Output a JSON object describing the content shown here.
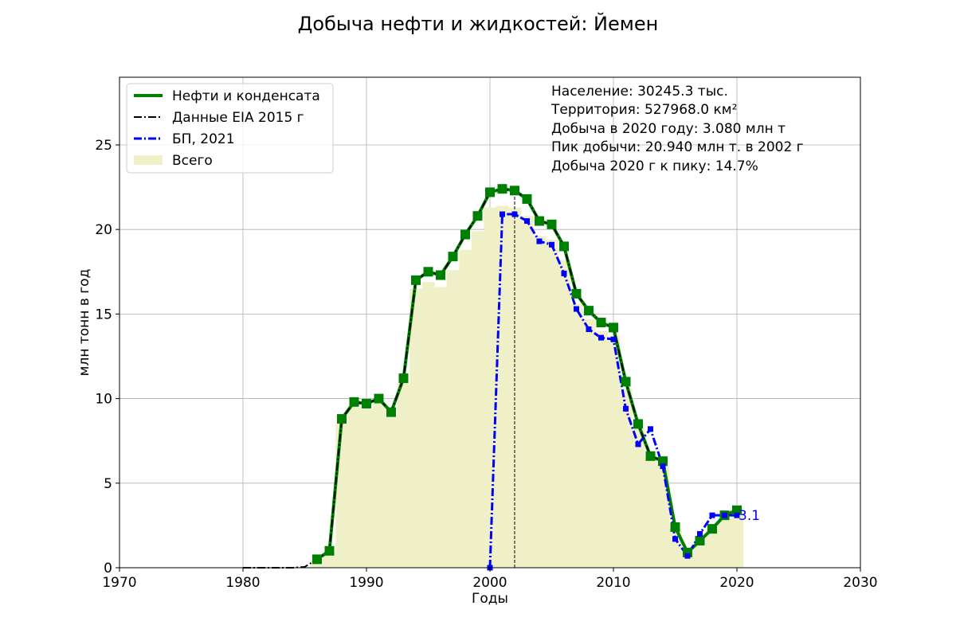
{
  "chart_data": {
    "type": "line",
    "title": "Добыча нефти и жидкостей: Йемен",
    "xlabel": "Годы",
    "ylabel": "млн тонн в год",
    "xlim": [
      1970,
      2030
    ],
    "ylim": [
      0,
      29
    ],
    "x_ticks": [
      "1970",
      "1980",
      "1990",
      "2000",
      "2010",
      "2020",
      "2030"
    ],
    "y_ticks": [
      "0",
      "5",
      "10",
      "15",
      "20",
      "25"
    ],
    "grid": true,
    "legend_position": "top-left",
    "legend": [
      {
        "label": "Нефти и конденсата",
        "color": "#008000",
        "style": "solid-thick"
      },
      {
        "label": "Данные EIA 2015 г",
        "color": "#000000",
        "style": "dash-dot"
      },
      {
        "label": "БП, 2021",
        "color": "#0000ff",
        "style": "dash-dot-thick"
      },
      {
        "label": "Всего",
        "color": "#f0f0c8",
        "style": "patch"
      }
    ],
    "info_lines": [
      "Население: 30245.3 тыс.",
      "Территория: 527968.0 км²",
      "Добыча в 2020 году: 3.080 млн т",
      "Пик добычи: 20.940 млн т. в 2002 г",
      "Добыча 2020 г к пику: 14.7%"
    ],
    "annotation": {
      "text": "3.1",
      "x": 2020,
      "y": 3.1,
      "color": "#0000ff"
    },
    "peak_marker_year": 2002,
    "series": [
      {
        "name": "Нефти и конденсата",
        "color": "#008000",
        "x": [
          1986,
          1987,
          1988,
          1989,
          1990,
          1991,
          1992,
          1993,
          1994,
          1995,
          1996,
          1997,
          1998,
          1999,
          2000,
          2001,
          2002,
          2003,
          2004,
          2005,
          2006,
          2007,
          2008,
          2009,
          2010,
          2011,
          2012,
          2013,
          2014,
          2015,
          2016,
          2017,
          2018,
          2019,
          2020
        ],
        "values": [
          0.5,
          1.0,
          8.8,
          9.8,
          9.7,
          10.0,
          9.2,
          11.2,
          17.0,
          17.5,
          17.3,
          18.4,
          19.7,
          20.8,
          22.2,
          22.4,
          22.3,
          21.8,
          20.5,
          20.3,
          19.0,
          16.2,
          15.2,
          14.5,
          14.2,
          11.0,
          8.5,
          6.6,
          6.3,
          2.4,
          0.9,
          1.6,
          2.3,
          3.1,
          3.4
        ]
      },
      {
        "name": "Данные EIA 2015 г",
        "color": "#000000",
        "x": [
          1980,
          1981,
          1982,
          1983,
          1984,
          1985,
          1986,
          1987,
          1988,
          1989,
          1990,
          1991,
          1992,
          1993,
          1994,
          1995,
          1996,
          1997,
          1998,
          1999,
          2000,
          2001,
          2002,
          2003,
          2004,
          2005,
          2006,
          2007,
          2008,
          2009,
          2010,
          2011,
          2012,
          2013,
          2014
        ],
        "values": [
          0,
          0,
          0,
          0,
          0,
          0.05,
          0.5,
          1.0,
          8.8,
          9.8,
          9.7,
          10.0,
          9.2,
          11.2,
          17.0,
          17.5,
          17.3,
          18.4,
          19.7,
          20.8,
          22.2,
          22.4,
          22.3,
          21.8,
          20.5,
          20.3,
          19.0,
          16.2,
          15.2,
          14.5,
          14.2,
          11.0,
          8.5,
          6.6,
          6.3
        ]
      },
      {
        "name": "БП, 2021",
        "color": "#0000ff",
        "x": [
          2000,
          2001,
          2002,
          2003,
          2004,
          2005,
          2006,
          2007,
          2008,
          2009,
          2010,
          2011,
          2012,
          2013,
          2014,
          2015,
          2016,
          2017,
          2018,
          2019,
          2020
        ],
        "values": [
          0.0,
          20.9,
          20.9,
          20.5,
          19.3,
          19.1,
          17.4,
          15.3,
          14.1,
          13.6,
          13.5,
          9.4,
          7.3,
          8.2,
          6.0,
          1.7,
          0.7,
          2.0,
          3.1,
          3.1,
          3.1
        ]
      },
      {
        "name": "Всего",
        "color": "#f0f0c8",
        "x": [
          1986,
          1987,
          1988,
          1989,
          1990,
          1991,
          1992,
          1993,
          1994,
          1995,
          1996,
          1997,
          1998,
          1999,
          2000,
          2001,
          2002,
          2003,
          2004,
          2005,
          2006,
          2007,
          2008,
          2009,
          2010,
          2011,
          2012,
          2013,
          2014,
          2015,
          2016,
          2017,
          2018,
          2019,
          2020
        ],
        "values": [
          0.5,
          0.9,
          8.5,
          9.5,
          9.4,
          9.7,
          9.0,
          10.9,
          16.5,
          16.9,
          16.6,
          17.6,
          18.8,
          19.9,
          21.3,
          21.4,
          21.3,
          20.8,
          19.6,
          19.4,
          18.2,
          15.6,
          14.7,
          14.0,
          13.7,
          10.6,
          8.2,
          6.4,
          6.1,
          2.3,
          0.9,
          1.6,
          2.3,
          3.0,
          3.1
        ]
      }
    ]
  }
}
